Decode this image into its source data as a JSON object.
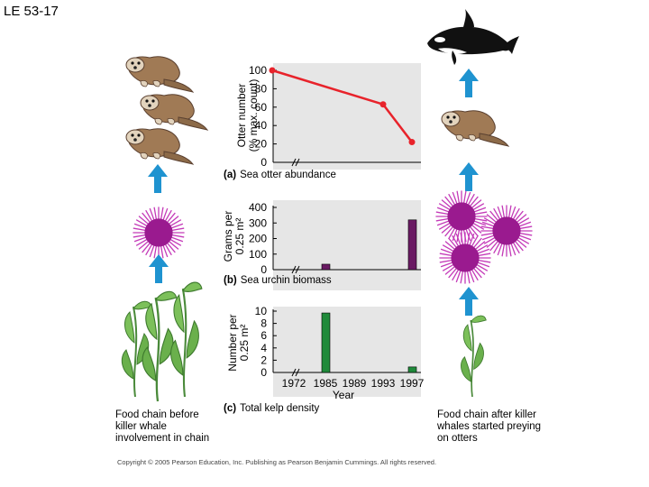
{
  "slide_title": "LE 53-17",
  "left_caption": "Food chain before killer whale involvement in chain",
  "right_caption": "Food chain after killer whales started preying on otters",
  "copyright": "Copyright © 2005 Pearson Education, Inc. Publishing as Pearson Benjamin Cummings. All rights reserved.",
  "colors": {
    "line": "#e8232b",
    "urchin_bar": "#6a1a63",
    "kelp_bar": "#1f8a3a",
    "arrow": "#1f93d0",
    "panel_bg": "#e6e6e6"
  },
  "icons": [
    "sea-otter-icon",
    "sea-urchin-icon",
    "kelp-icon",
    "killer-whale-icon",
    "up-arrow-icon"
  ],
  "chart_data": [
    {
      "type": "line",
      "panel_label": "(a)",
      "title": "Sea otter abundance",
      "ylabel_lines": [
        "Otter number",
        "(% max. count)"
      ],
      "yticks": [
        "0",
        "20",
        "40",
        "60",
        "80",
        "100"
      ],
      "ylim": [
        0,
        100
      ],
      "x": [
        1972,
        1993,
        1997
      ],
      "values": [
        100,
        63,
        22
      ],
      "axis_break": true
    },
    {
      "type": "bar",
      "panel_label": "(b)",
      "title": "Sea urchin biomass",
      "ylabel_lines": [
        "Grams per",
        "0.25 m²"
      ],
      "yticks": [
        "0",
        "100",
        "200",
        "300",
        "400"
      ],
      "ylim": [
        0,
        400
      ],
      "x": [
        1985,
        1997
      ],
      "values": [
        35,
        320
      ],
      "axis_break": true
    },
    {
      "type": "bar",
      "panel_label": "(c)",
      "title": "Total kelp density",
      "ylabel_lines": [
        "Number per",
        "0.25 m²"
      ],
      "yticks": [
        "0",
        "2",
        "4",
        "6",
        "8",
        "10"
      ],
      "ylim": [
        0,
        10
      ],
      "x": [
        1985,
        1997
      ],
      "values": [
        9.7,
        0.9
      ],
      "xticks": [
        "1972",
        "1985",
        "1989",
        "1993",
        "1997"
      ],
      "xlabel": "Year",
      "axis_break": true
    }
  ]
}
